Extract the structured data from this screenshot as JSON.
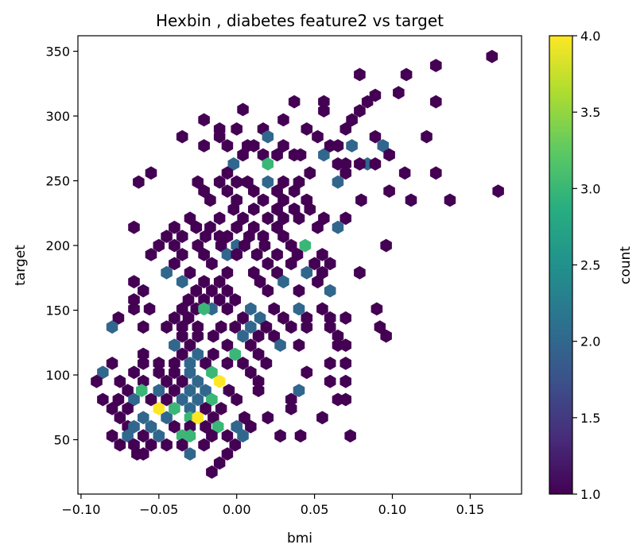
{
  "chart_data": {
    "type": "hexbin",
    "title": "Hexbin , diabetes feature2 vs target",
    "xlabel": "bmi",
    "ylabel": "target",
    "xlim": [
      -0.102,
      0.183
    ],
    "ylim": [
      8,
      362
    ],
    "x_ticks": [
      -0.1,
      -0.05,
      0.0,
      0.05,
      0.1,
      0.15
    ],
    "x_tick_labels": [
      "−0.10",
      "−0.05",
      "0.00",
      "0.05",
      "0.10",
      "0.15"
    ],
    "y_ticks": [
      50,
      100,
      150,
      200,
      250,
      300,
      350
    ],
    "y_tick_labels": [
      "50",
      "100",
      "150",
      "200",
      "250",
      "300",
      "350"
    ],
    "colorbar": {
      "label": "count",
      "colormap": "viridis",
      "range": [
        1.0,
        4.0
      ],
      "ticks": [
        1.0,
        1.5,
        2.0,
        2.5,
        3.0,
        3.5,
        4.0
      ],
      "tick_labels": [
        "1.0",
        "1.5",
        "2.0",
        "2.5",
        "3.0",
        "3.5",
        "4.0"
      ]
    },
    "grid": false,
    "cells": [
      [
        0.164,
        346,
        1
      ],
      [
        0.128,
        339,
        1
      ],
      [
        0.079,
        332,
        1
      ],
      [
        0.109,
        332,
        1
      ],
      [
        0.104,
        318,
        1
      ],
      [
        0.089,
        316,
        1
      ],
      [
        0.128,
        311,
        1
      ],
      [
        0.004,
        305,
        1
      ],
      [
        0.037,
        311,
        1
      ],
      [
        0.056,
        311,
        1
      ],
      [
        0.084,
        311,
        1
      ],
      [
        -0.021,
        297,
        1
      ],
      [
        0.03,
        297,
        1
      ],
      [
        0.056,
        304,
        1
      ],
      [
        0.074,
        297,
        1
      ],
      [
        0.079,
        304,
        1
      ],
      [
        0.0,
        290,
        1
      ],
      [
        0.017,
        290,
        1
      ],
      [
        -0.011,
        284,
        1
      ],
      [
        0.045,
        290,
        1
      ],
      [
        0.07,
        290,
        1
      ],
      [
        -0.011,
        290,
        1
      ],
      [
        0.122,
        284,
        1
      ],
      [
        -0.021,
        277,
        1
      ],
      [
        -0.006,
        277,
        1
      ],
      [
        0.007,
        277,
        1
      ],
      [
        0.02,
        284,
        2
      ],
      [
        0.052,
        284,
        1
      ],
      [
        0.065,
        277,
        1
      ],
      [
        0.074,
        277,
        2
      ],
      [
        0.089,
        284,
        1
      ],
      [
        0.094,
        277,
        2
      ],
      [
        0.098,
        270,
        1
      ],
      [
        -0.035,
        284,
        1
      ],
      [
        0.011,
        277,
        1
      ],
      [
        0.03,
        277,
        1
      ],
      [
        0.041,
        270,
        1
      ],
      [
        0.056,
        270,
        2
      ],
      [
        0.06,
        277,
        1
      ],
      [
        0.065,
        263,
        1
      ],
      [
        0.084,
        263,
        2
      ],
      [
        0.004,
        270,
        1
      ],
      [
        0.017,
        270,
        1
      ],
      [
        0.026,
        270,
        1
      ],
      [
        0.037,
        270,
        1
      ],
      [
        0.07,
        263,
        1
      ],
      [
        -0.002,
        263,
        2
      ],
      [
        0.02,
        263,
        3
      ],
      [
        -0.055,
        256,
        1
      ],
      [
        -0.006,
        256,
        1
      ],
      [
        0.047,
        256,
        1
      ],
      [
        0.07,
        256,
        1
      ],
      [
        0.079,
        263,
        1
      ],
      [
        0.089,
        263,
        1
      ],
      [
        0.108,
        256,
        1
      ],
      [
        0.128,
        256,
        1
      ],
      [
        -0.063,
        249,
        1
      ],
      [
        -0.025,
        249,
        1
      ],
      [
        -0.011,
        249,
        1
      ],
      [
        0.0,
        249,
        1
      ],
      [
        0.007,
        249,
        1
      ],
      [
        0.02,
        249,
        2
      ],
      [
        0.03,
        249,
        1
      ],
      [
        0.04,
        249,
        1
      ],
      [
        0.065,
        249,
        2
      ],
      [
        -0.021,
        242,
        1
      ],
      [
        -0.006,
        242,
        1
      ],
      [
        0.011,
        242,
        1
      ],
      [
        0.026,
        242,
        1
      ],
      [
        0.037,
        242,
        1
      ],
      [
        0.098,
        242,
        1
      ],
      [
        0.168,
        242,
        1
      ],
      [
        -0.017,
        235,
        1
      ],
      [
        0.0,
        235,
        1
      ],
      [
        0.017,
        235,
        1
      ],
      [
        0.03,
        235,
        1
      ],
      [
        0.045,
        235,
        1
      ],
      [
        0.08,
        235,
        1
      ],
      [
        0.112,
        235,
        1
      ],
      [
        0.137,
        235,
        1
      ],
      [
        -0.002,
        228,
        1
      ],
      [
        0.011,
        228,
        1
      ],
      [
        0.026,
        228,
        1
      ],
      [
        0.037,
        228,
        1
      ],
      [
        0.047,
        228,
        1
      ],
      [
        -0.03,
        221,
        1
      ],
      [
        -0.011,
        221,
        1
      ],
      [
        0.004,
        221,
        1
      ],
      [
        0.02,
        221,
        1
      ],
      [
        0.03,
        221,
        1
      ],
      [
        0.04,
        221,
        1
      ],
      [
        0.056,
        221,
        1
      ],
      [
        0.07,
        221,
        1
      ],
      [
        -0.017,
        214,
        1
      ],
      [
        0.0,
        214,
        1
      ],
      [
        0.011,
        214,
        1
      ],
      [
        0.026,
        214,
        1
      ],
      [
        0.052,
        214,
        1
      ],
      [
        0.065,
        214,
        2
      ],
      [
        -0.066,
        214,
        1
      ],
      [
        -0.04,
        214,
        1
      ],
      [
        -0.026,
        214,
        1
      ],
      [
        -0.006,
        207,
        1
      ],
      [
        0.008,
        207,
        1
      ],
      [
        -0.045,
        207,
        1
      ],
      [
        -0.035,
        207,
        1
      ],
      [
        -0.02,
        207,
        1
      ],
      [
        -0.011,
        207,
        1
      ],
      [
        0.017,
        207,
        1
      ],
      [
        0.03,
        207,
        1
      ],
      [
        -0.025,
        200,
        1
      ],
      [
        -0.01,
        200,
        1
      ],
      [
        0.0,
        200,
        2
      ],
      [
        0.018,
        200,
        1
      ],
      [
        0.035,
        200,
        1
      ],
      [
        0.044,
        200,
        3
      ],
      [
        0.096,
        200,
        1
      ],
      [
        -0.05,
        200,
        1
      ],
      [
        -0.04,
        200,
        1
      ],
      [
        0.005,
        200,
        1
      ],
      [
        0.026,
        193,
        1
      ],
      [
        0.039,
        193,
        1
      ],
      [
        0.055,
        193,
        1
      ],
      [
        -0.055,
        193,
        1
      ],
      [
        -0.035,
        193,
        1
      ],
      [
        -0.021,
        193,
        1
      ],
      [
        -0.006,
        193,
        2
      ],
      [
        0.0,
        193,
        1
      ],
      [
        0.013,
        193,
        1
      ],
      [
        0.06,
        186,
        1
      ],
      [
        -0.04,
        186,
        1
      ],
      [
        -0.016,
        186,
        1
      ],
      [
        0.02,
        186,
        1
      ],
      [
        0.035,
        186,
        1
      ],
      [
        0.05,
        186,
        1
      ],
      [
        -0.045,
        179,
        2
      ],
      [
        -0.03,
        179,
        1
      ],
      [
        -0.006,
        179,
        1
      ],
      [
        0.011,
        179,
        1
      ],
      [
        0.026,
        179,
        1
      ],
      [
        0.045,
        179,
        2
      ],
      [
        0.055,
        179,
        1
      ],
      [
        0.079,
        179,
        1
      ],
      [
        -0.066,
        172,
        1
      ],
      [
        -0.035,
        172,
        2
      ],
      [
        -0.021,
        172,
        1
      ],
      [
        -0.011,
        172,
        1
      ],
      [
        0.015,
        172,
        1
      ],
      [
        0.03,
        172,
        2
      ],
      [
        0.052,
        172,
        1
      ],
      [
        -0.06,
        165,
        1
      ],
      [
        -0.026,
        165,
        1
      ],
      [
        -0.016,
        165,
        1
      ],
      [
        -0.006,
        165,
        1
      ],
      [
        0.02,
        165,
        1
      ],
      [
        0.04,
        165,
        1
      ],
      [
        0.06,
        165,
        2
      ],
      [
        -0.066,
        158,
        1
      ],
      [
        -0.031,
        158,
        1
      ],
      [
        -0.021,
        158,
        1
      ],
      [
        -0.011,
        158,
        1
      ],
      [
        -0.001,
        158,
        1
      ],
      [
        -0.066,
        151,
        1
      ],
      [
        -0.056,
        151,
        1
      ],
      [
        -0.016,
        151,
        2
      ],
      [
        -0.035,
        151,
        1
      ],
      [
        -0.026,
        151,
        1
      ],
      [
        -0.021,
        151,
        3
      ],
      [
        -0.006,
        151,
        1
      ],
      [
        0.009,
        151,
        2
      ],
      [
        0.024,
        151,
        1
      ],
      [
        0.04,
        151,
        2
      ],
      [
        0.055,
        151,
        1
      ],
      [
        0.09,
        151,
        1
      ],
      [
        -0.076,
        144,
        1
      ],
      [
        -0.04,
        144,
        1
      ],
      [
        -0.031,
        144,
        1
      ],
      [
        0.004,
        144,
        1
      ],
      [
        0.015,
        144,
        2
      ],
      [
        0.03,
        144,
        1
      ],
      [
        0.045,
        144,
        1
      ],
      [
        0.06,
        144,
        1
      ],
      [
        0.07,
        144,
        1
      ],
      [
        -0.08,
        137,
        2
      ],
      [
        -0.06,
        137,
        1
      ],
      [
        -0.045,
        137,
        1
      ],
      [
        -0.035,
        137,
        1
      ],
      [
        -0.025,
        137,
        1
      ],
      [
        -0.01,
        137,
        1
      ],
      [
        -0.001,
        137,
        1
      ],
      [
        0.009,
        137,
        2
      ],
      [
        0.019,
        137,
        1
      ],
      [
        0.035,
        137,
        1
      ],
      [
        0.045,
        137,
        1
      ],
      [
        0.06,
        137,
        1
      ],
      [
        0.092,
        137,
        1
      ],
      [
        -0.035,
        130,
        1
      ],
      [
        -0.025,
        130,
        1
      ],
      [
        -0.015,
        130,
        1
      ],
      [
        0.004,
        130,
        2
      ],
      [
        0.014,
        130,
        1
      ],
      [
        0.024,
        130,
        1
      ],
      [
        0.065,
        130,
        1
      ],
      [
        0.096,
        130,
        1
      ],
      [
        -0.04,
        123,
        2
      ],
      [
        -0.03,
        123,
        1
      ],
      [
        -0.006,
        123,
        1
      ],
      [
        0.009,
        123,
        1
      ],
      [
        0.028,
        123,
        2
      ],
      [
        0.04,
        123,
        1
      ],
      [
        0.065,
        123,
        1
      ],
      [
        0.07,
        123,
        1
      ],
      [
        -0.06,
        116,
        1
      ],
      [
        -0.035,
        116,
        1
      ],
      [
        -0.025,
        116,
        2
      ],
      [
        -0.015,
        116,
        1
      ],
      [
        -0.001,
        116,
        3
      ],
      [
        0.014,
        116,
        1
      ],
      [
        -0.08,
        109,
        1
      ],
      [
        -0.06,
        109,
        1
      ],
      [
        -0.05,
        109,
        1
      ],
      [
        -0.04,
        109,
        1
      ],
      [
        -0.03,
        109,
        2
      ],
      [
        -0.02,
        109,
        1
      ],
      [
        -0.006,
        109,
        1
      ],
      [
        0.004,
        109,
        1
      ],
      [
        0.019,
        109,
        1
      ],
      [
        0.06,
        109,
        1
      ],
      [
        0.07,
        109,
        1
      ],
      [
        -0.066,
        102,
        1
      ],
      [
        -0.05,
        102,
        1
      ],
      [
        -0.04,
        102,
        1
      ],
      [
        -0.03,
        102,
        2
      ],
      [
        -0.016,
        102,
        3
      ],
      [
        0.009,
        102,
        1
      ],
      [
        0.045,
        102,
        1
      ],
      [
        -0.086,
        102,
        2
      ],
      [
        -0.075,
        95,
        1
      ],
      [
        -0.06,
        95,
        1
      ],
      [
        -0.045,
        95,
        1
      ],
      [
        -0.035,
        95,
        1
      ],
      [
        -0.025,
        95,
        2
      ],
      [
        -0.011,
        95,
        4
      ],
      [
        0.014,
        95,
        1
      ],
      [
        0.06,
        95,
        1
      ],
      [
        0.07,
        95,
        1
      ],
      [
        -0.09,
        95,
        1
      ],
      [
        -0.07,
        88,
        1
      ],
      [
        -0.061,
        88,
        3
      ],
      [
        -0.05,
        88,
        2
      ],
      [
        -0.04,
        88,
        1
      ],
      [
        -0.03,
        88,
        2
      ],
      [
        -0.02,
        88,
        2
      ],
      [
        -0.005,
        88,
        1
      ],
      [
        0.014,
        88,
        1
      ],
      [
        0.04,
        88,
        2
      ],
      [
        -0.086,
        81,
        1
      ],
      [
        -0.076,
        81,
        1
      ],
      [
        -0.066,
        81,
        2
      ],
      [
        -0.055,
        81,
        1
      ],
      [
        -0.045,
        81,
        1
      ],
      [
        -0.035,
        81,
        2
      ],
      [
        -0.025,
        81,
        2
      ],
      [
        -0.016,
        81,
        3
      ],
      [
        0.0,
        81,
        1
      ],
      [
        0.035,
        81,
        1
      ],
      [
        0.065,
        81,
        1
      ],
      [
        0.07,
        81,
        1
      ],
      [
        -0.08,
        74,
        1
      ],
      [
        -0.07,
        74,
        1
      ],
      [
        -0.05,
        74,
        4
      ],
      [
        -0.04,
        74,
        3
      ],
      [
        -0.03,
        74,
        2
      ],
      [
        -0.02,
        74,
        1
      ],
      [
        -0.01,
        74,
        1
      ],
      [
        0.035,
        74,
        1
      ],
      [
        -0.075,
        67,
        1
      ],
      [
        -0.06,
        67,
        2
      ],
      [
        -0.045,
        67,
        2
      ],
      [
        -0.03,
        67,
        3
      ],
      [
        -0.025,
        67,
        4
      ],
      [
        -0.015,
        67,
        1
      ],
      [
        0.005,
        67,
        1
      ],
      [
        0.02,
        67,
        1
      ],
      [
        0.055,
        67,
        1
      ],
      [
        -0.07,
        60,
        1
      ],
      [
        -0.066,
        60,
        2
      ],
      [
        -0.055,
        60,
        2
      ],
      [
        -0.04,
        60,
        1
      ],
      [
        -0.03,
        60,
        1
      ],
      [
        -0.02,
        60,
        1
      ],
      [
        -0.012,
        60,
        3
      ],
      [
        0.0,
        60,
        2
      ],
      [
        0.009,
        60,
        1
      ],
      [
        -0.08,
        53,
        1
      ],
      [
        -0.07,
        53,
        2
      ],
      [
        -0.06,
        53,
        1
      ],
      [
        -0.05,
        53,
        2
      ],
      [
        -0.035,
        53,
        3
      ],
      [
        -0.03,
        53,
        3
      ],
      [
        -0.016,
        53,
        1
      ],
      [
        -0.006,
        53,
        1
      ],
      [
        0.004,
        53,
        2
      ],
      [
        0.028,
        53,
        1
      ],
      [
        0.041,
        53,
        1
      ],
      [
        0.073,
        53,
        1
      ],
      [
        -0.075,
        46,
        1
      ],
      [
        -0.066,
        46,
        1
      ],
      [
        -0.055,
        46,
        1
      ],
      [
        -0.045,
        46,
        1
      ],
      [
        -0.035,
        46,
        1
      ],
      [
        -0.021,
        46,
        1
      ],
      [
        -0.001,
        46,
        1
      ],
      [
        -0.064,
        39,
        1
      ],
      [
        -0.06,
        39,
        1
      ],
      [
        -0.03,
        39,
        2
      ],
      [
        -0.006,
        39,
        1
      ],
      [
        -0.011,
        32,
        1
      ],
      [
        -0.016,
        25,
        1
      ]
    ]
  }
}
